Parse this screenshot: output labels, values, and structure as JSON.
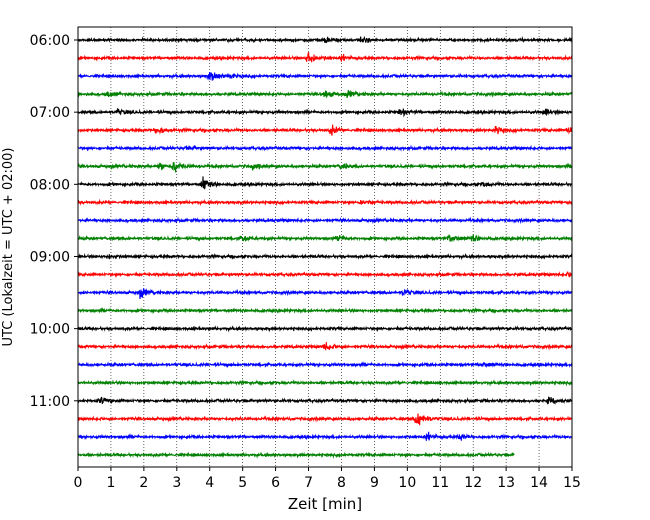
{
  "chart_data": {
    "type": "line",
    "title": "",
    "xlabel": "Zeit  [min]",
    "ylabel": "UTC (Lokalzeit = UTC + 02:00)",
    "xlim": [
      0,
      15
    ],
    "x_ticks": [
      0,
      1,
      2,
      3,
      4,
      5,
      6,
      7,
      8,
      9,
      10,
      11,
      12,
      13,
      14,
      15
    ],
    "y_tick_labels": [
      "06:00",
      "07:00",
      "08:00",
      "09:00",
      "10:00",
      "11:00"
    ],
    "y_tick_rows": [
      0,
      4,
      8,
      12,
      16,
      20
    ],
    "grid": "vertical dotted at each minute",
    "row_minutes": 15,
    "row_colors": [
      "#000000",
      "#ff0000",
      "#0000ff",
      "#008000"
    ],
    "rows": [
      {
        "start": "06:00",
        "color": "#000000",
        "end_min": 15,
        "events": [
          [
            7.5,
            0.6
          ],
          [
            8.6,
            0.7
          ]
        ]
      },
      {
        "start": "06:15",
        "color": "#ff0000",
        "end_min": 15,
        "events": [
          [
            7.0,
            1.6
          ],
          [
            8.0,
            0.6
          ]
        ]
      },
      {
        "start": "06:30",
        "color": "#0000ff",
        "end_min": 15,
        "events": [
          [
            4.0,
            1.3
          ],
          [
            4.6,
            0.7
          ]
        ]
      },
      {
        "start": "06:45",
        "color": "#008000",
        "end_min": 15,
        "events": [
          [
            0.9,
            0.5
          ],
          [
            7.5,
            0.7
          ],
          [
            8.2,
            0.6
          ]
        ]
      },
      {
        "start": "07:00",
        "color": "#000000",
        "end_min": 15,
        "events": [
          [
            1.2,
            0.6
          ],
          [
            9.8,
            0.7
          ],
          [
            14.2,
            0.6
          ]
        ]
      },
      {
        "start": "07:15",
        "color": "#ff0000",
        "end_min": 15,
        "events": [
          [
            2.4,
            0.9
          ],
          [
            7.7,
            0.9
          ],
          [
            12.7,
            0.9
          ],
          [
            14.9,
            0.9
          ]
        ]
      },
      {
        "start": "07:30",
        "color": "#0000ff",
        "end_min": 15,
        "events": [
          [
            3.3,
            0.4
          ]
        ]
      },
      {
        "start": "07:45",
        "color": "#008000",
        "end_min": 15,
        "events": [
          [
            2.5,
            0.8
          ],
          [
            2.9,
            1.3
          ],
          [
            5.3,
            0.7
          ],
          [
            8.0,
            0.6
          ]
        ]
      },
      {
        "start": "08:00",
        "color": "#000000",
        "end_min": 15,
        "events": [
          [
            3.8,
            1.3
          ],
          [
            12.3,
            0.5
          ]
        ]
      },
      {
        "start": "08:15",
        "color": "#ff0000",
        "end_min": 15,
        "events": [
          [
            8.6,
            0.4
          ]
        ]
      },
      {
        "start": "08:30",
        "color": "#0000ff",
        "end_min": 15,
        "events": []
      },
      {
        "start": "08:45",
        "color": "#008000",
        "end_min": 15,
        "events": [
          [
            5.0,
            0.5
          ],
          [
            7.9,
            0.8
          ],
          [
            11.3,
            1.0
          ],
          [
            12.0,
            0.6
          ]
        ]
      },
      {
        "start": "09:00",
        "color": "#000000",
        "end_min": 15,
        "events": [
          [
            0.9,
            0.4
          ]
        ]
      },
      {
        "start": "09:15",
        "color": "#ff0000",
        "end_min": 15,
        "events": [
          [
            14.9,
            0.6
          ]
        ]
      },
      {
        "start": "09:30",
        "color": "#0000ff",
        "end_min": 15,
        "events": [
          [
            1.9,
            1.0
          ],
          [
            9.9,
            0.7
          ]
        ]
      },
      {
        "start": "09:45",
        "color": "#008000",
        "end_min": 15,
        "events": []
      },
      {
        "start": "10:00",
        "color": "#000000",
        "end_min": 15,
        "events": []
      },
      {
        "start": "10:15",
        "color": "#ff0000",
        "end_min": 15,
        "events": [
          [
            7.5,
            1.0
          ]
        ]
      },
      {
        "start": "10:30",
        "color": "#0000ff",
        "end_min": 15,
        "events": [
          [
            12.3,
            0.5
          ]
        ]
      },
      {
        "start": "10:45",
        "color": "#008000",
        "end_min": 15,
        "events": []
      },
      {
        "start": "11:00",
        "color": "#000000",
        "end_min": 15,
        "events": [
          [
            0.7,
            0.8
          ],
          [
            14.3,
            0.6
          ]
        ]
      },
      {
        "start": "11:15",
        "color": "#ff0000",
        "end_min": 15,
        "events": [
          [
            10.3,
            1.8
          ]
        ]
      },
      {
        "start": "11:30",
        "color": "#0000ff",
        "end_min": 15,
        "events": [
          [
            10.6,
            0.8
          ],
          [
            11.6,
            0.5
          ]
        ]
      },
      {
        "start": "11:45",
        "color": "#008000",
        "end_min": 13.25,
        "events": []
      }
    ]
  }
}
